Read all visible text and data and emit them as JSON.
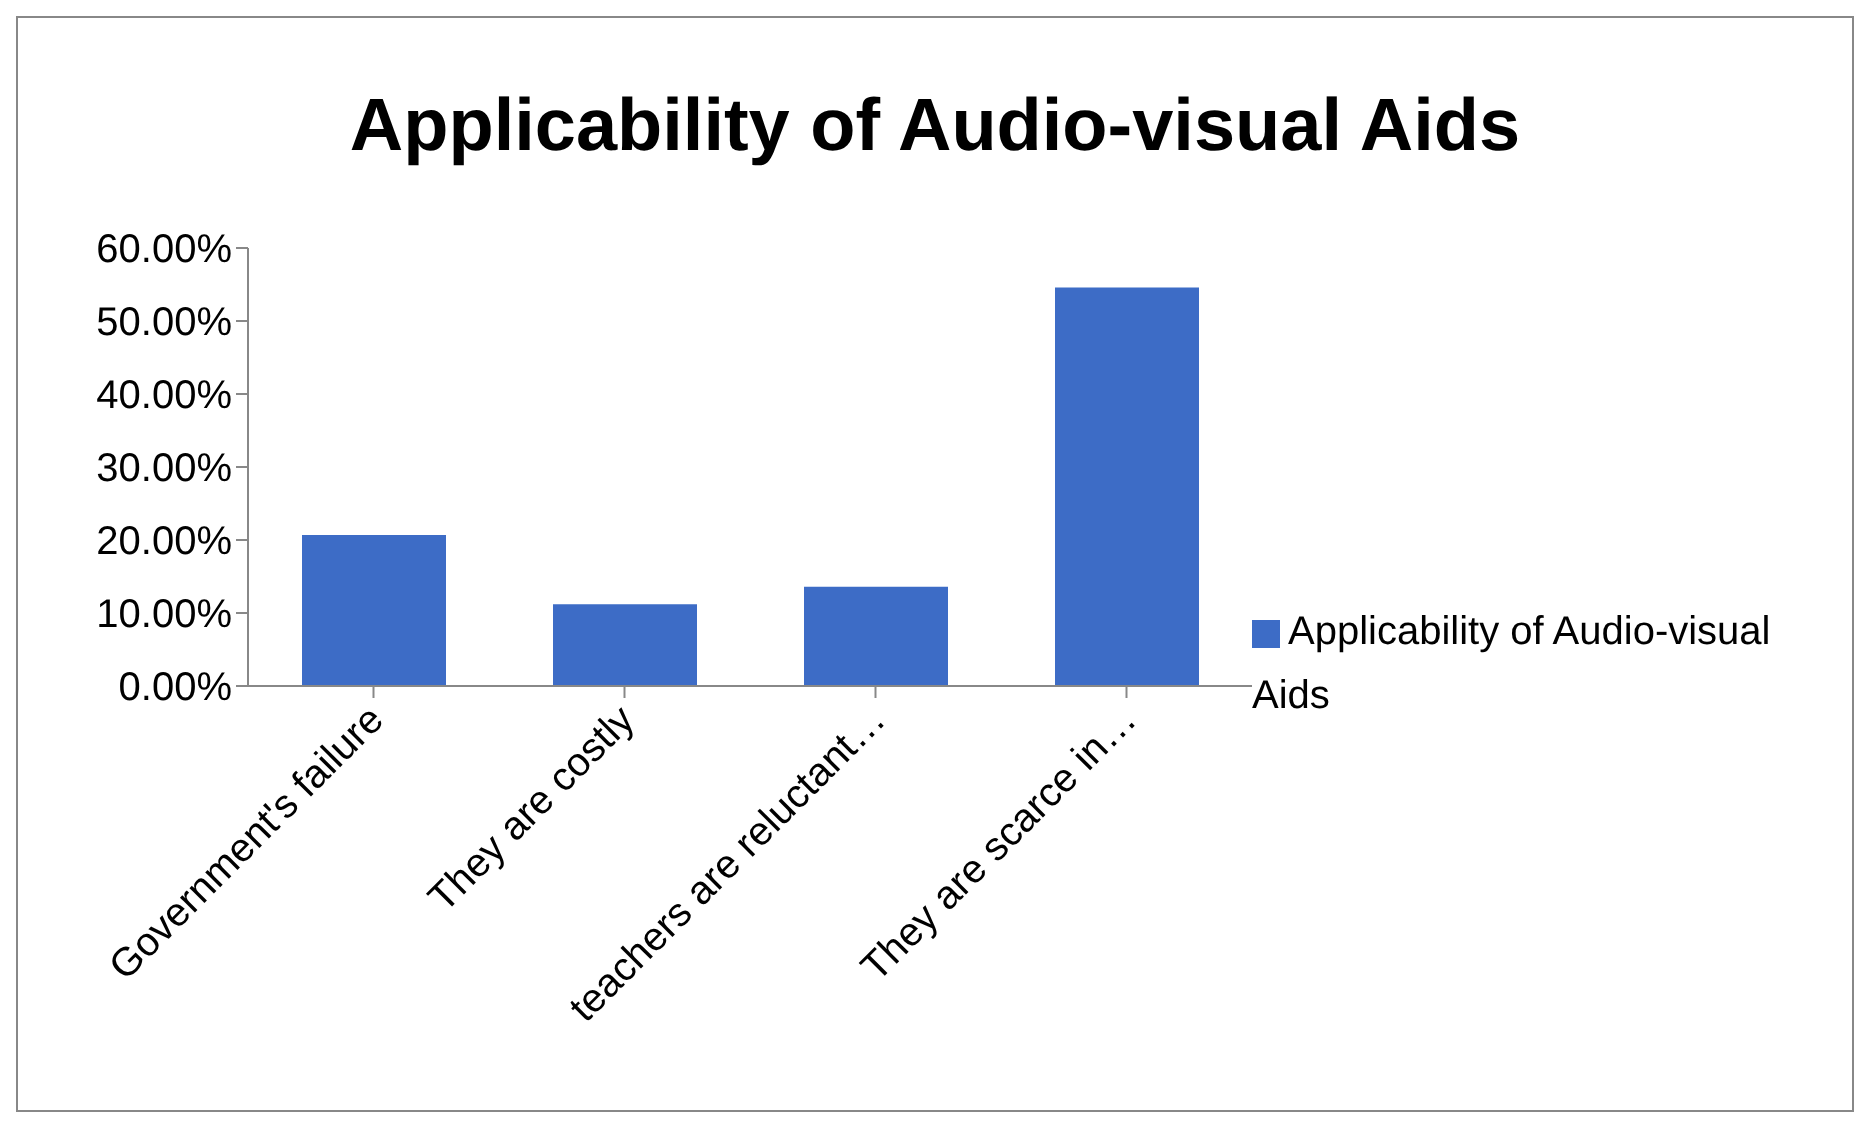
{
  "chart_data": {
    "type": "bar",
    "title": "Applicability of Audio-visual Aids",
    "categories": [
      "Government's failure",
      "They are costly",
      "teachers are reluctant…",
      "They are scarce in…"
    ],
    "series": [
      {
        "name": "Applicability of Audio-visual Aids",
        "color": "#3d6cc6",
        "values": [
          20.7,
          11.2,
          13.6,
          54.6
        ]
      }
    ],
    "ylim": [
      0,
      60
    ],
    "yticks": [
      {
        "value": 0,
        "label": "0.00%"
      },
      {
        "value": 10,
        "label": "10.00%"
      },
      {
        "value": 20,
        "label": "20.00%"
      },
      {
        "value": 30,
        "label": "30.00%"
      },
      {
        "value": 40,
        "label": "40.00%"
      },
      {
        "value": 50,
        "label": "50.00%"
      },
      {
        "value": 60,
        "label": "60.00%"
      }
    ],
    "grid": false,
    "legend": "right"
  }
}
